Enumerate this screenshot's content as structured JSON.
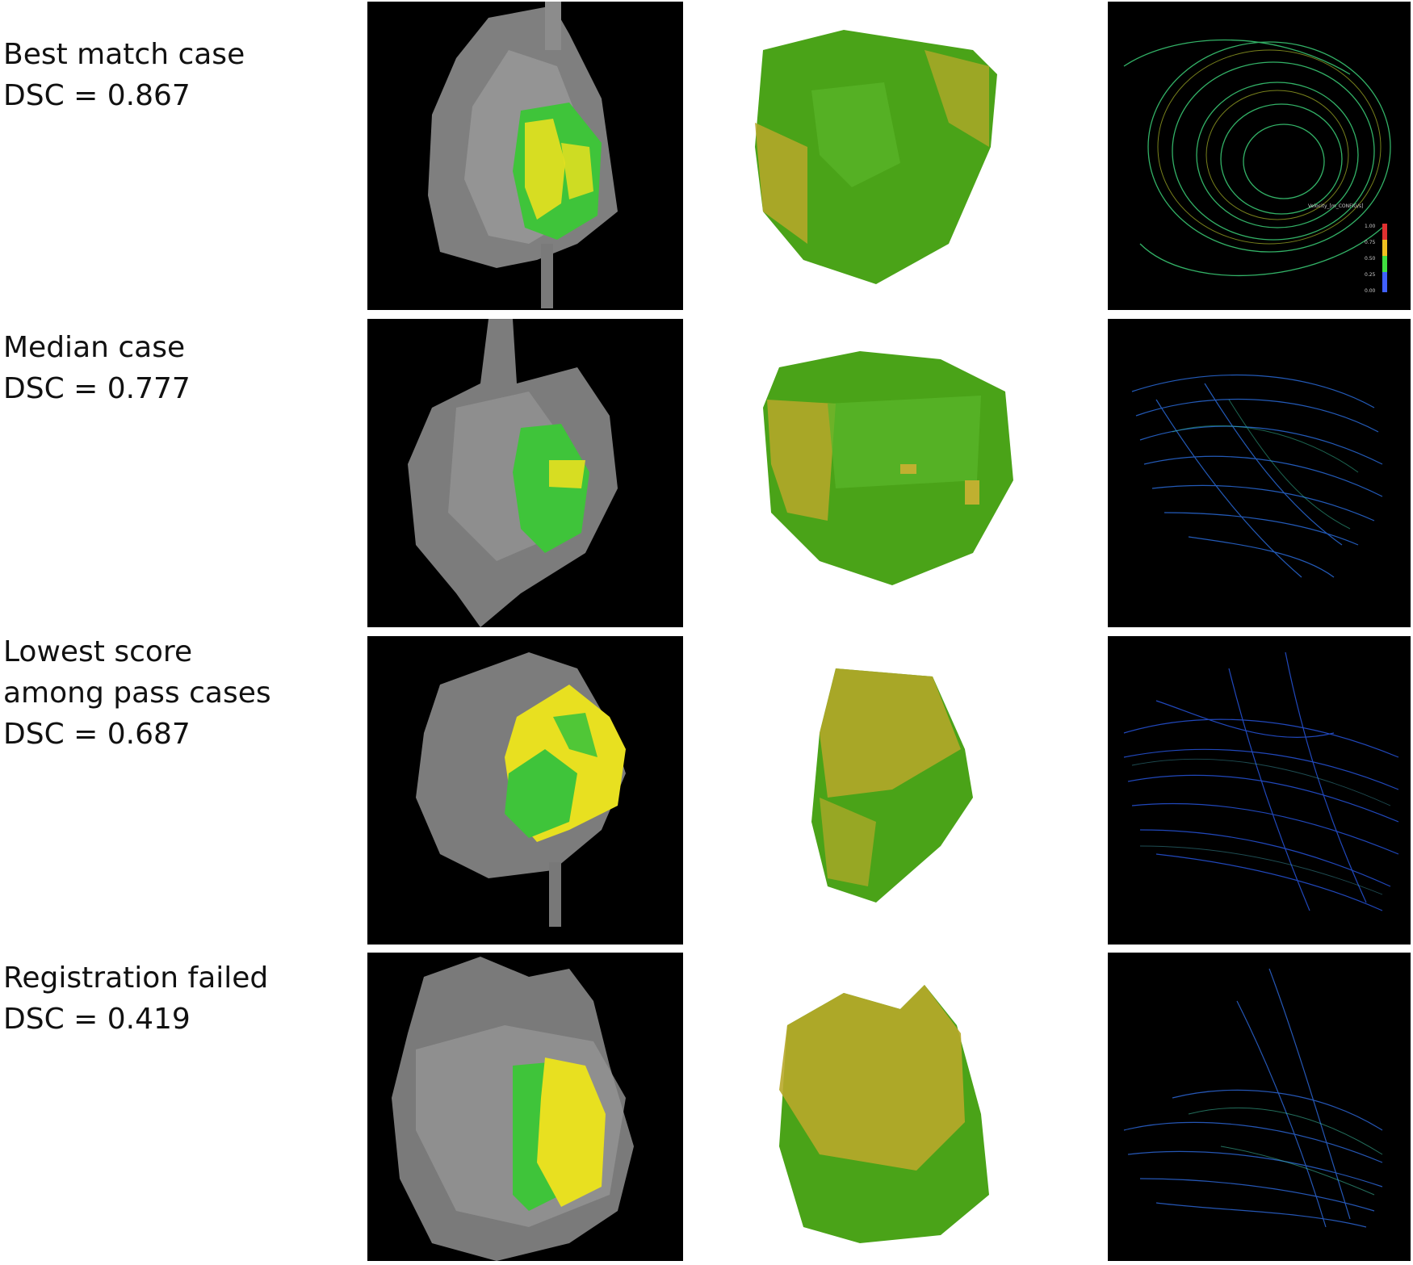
{
  "rows": [
    {
      "title_lines": [
        "Best match case"
      ],
      "dsc_text": "DSC = 0.867",
      "heart_overlay": "mixed green-yellow",
      "stream_color": "#3cd27a",
      "colorbar": {
        "title": "Velocity_[m_CONFIG/s]",
        "ticks": [
          "1.00",
          "0.75",
          "0.50",
          "0.25",
          "0.00"
        ]
      }
    },
    {
      "title_lines": [
        "Median case"
      ],
      "dsc_text": "DSC = 0.777",
      "heart_overlay": "mostly green",
      "stream_color": "#2a6ad8"
    },
    {
      "title_lines": [
        "Lowest score",
        "among pass cases"
      ],
      "dsc_text": "DSC = 0.687",
      "heart_overlay": "mostly yellow",
      "stream_color": "#2550d0"
    },
    {
      "title_lines": [
        "Registration failed"
      ],
      "dsc_text": "DSC = 0.419",
      "heart_overlay": "yellow dominant",
      "stream_color": "#2a60c8"
    }
  ],
  "colors": {
    "background_dark": "#000000",
    "heart_gray": "#8a8a8a",
    "overlay_green": "#3fc43a",
    "overlay_yellow": "#e8e020"
  }
}
